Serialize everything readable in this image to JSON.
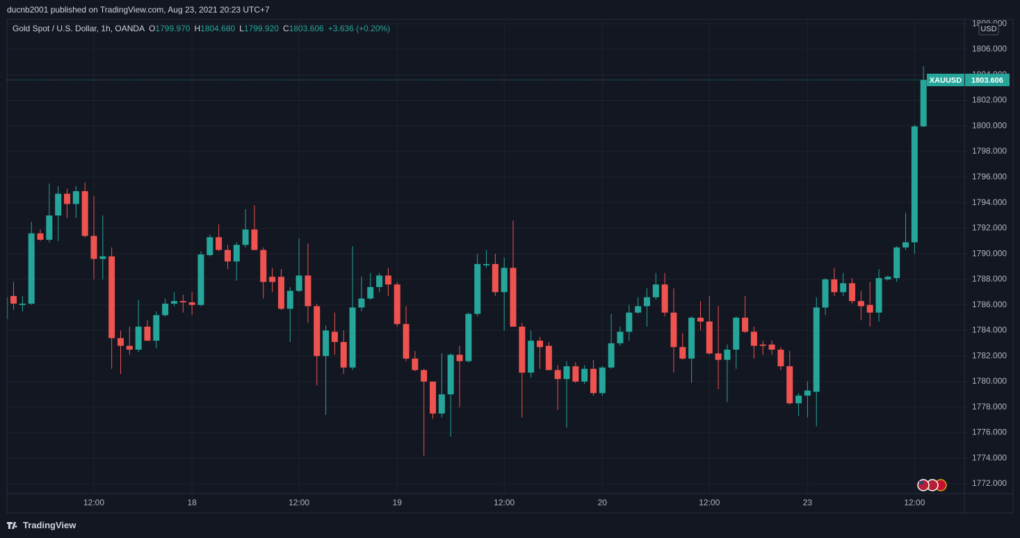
{
  "header": {
    "author": "ducnb2001 published on TradingView.com, Aug 23, 2021 20:23 UTC+7"
  },
  "legend": {
    "symbol": "Gold Spot / U.S. Dollar, 1h, OANDA",
    "ohlc": [
      {
        "key": "O",
        "value": "1799.970"
      },
      {
        "key": "H",
        "value": "1804.680"
      },
      {
        "key": "L",
        "value": "1799.920"
      },
      {
        "key": "C",
        "value": "1803.606"
      }
    ],
    "change": "+3.636 (+0.20%)"
  },
  "currency": "USD",
  "footer": {
    "brand": "TradingView"
  },
  "chart_data": {
    "type": "candlestick",
    "categories": [
      null,
      null,
      null,
      null,
      null,
      null,
      null,
      null,
      null,
      null,
      "12:00",
      null,
      null,
      null,
      null,
      null,
      null,
      null,
      null,
      null,
      null,
      "18",
      null,
      null,
      null,
      null,
      null,
      null,
      null,
      null,
      null,
      null,
      null,
      "12:00",
      null,
      null,
      null,
      null,
      null,
      null,
      null,
      null,
      null,
      null,
      "19",
      null,
      null,
      null,
      null,
      null,
      null,
      null,
      null,
      null,
      null,
      null,
      "12:00",
      null,
      null,
      null,
      null,
      null,
      null,
      null,
      null,
      null,
      null,
      "20",
      null,
      null,
      null,
      null,
      null,
      null,
      null,
      null,
      null,
      null,
      null,
      "12:00",
      null,
      null,
      null,
      null,
      null,
      null,
      null,
      null,
      null,
      null,
      "23",
      null,
      null,
      null,
      null,
      null,
      null,
      null,
      null,
      null,
      null,
      null,
      "12:00",
      null
    ],
    "series": [
      {
        "name": "XAUUSD",
        "last_value_label": "1803.606",
        "open": [
          1784.9,
          1786.7,
          1786.0,
          1786.1,
          1791.6,
          1791.1,
          1793.0,
          1794.7,
          1793.9,
          1794.9,
          1791.4,
          1789.6,
          1789.8,
          1783.4,
          1782.8,
          1782.5,
          1784.3,
          1783.2,
          1785.2,
          1786.1,
          1786.3,
          1786.2,
          1786.0,
          1789.9,
          1791.3,
          1790.3,
          1789.4,
          1790.7,
          1791.9,
          1790.3,
          1788.2,
          1788.2,
          1785.7,
          1787.1,
          1788.3,
          1785.9,
          1782.0,
          1783.9,
          1783.1,
          1781.1,
          1785.8,
          1786.5,
          1787.4,
          1788.3,
          1787.6,
          1784.5,
          1781.8,
          1780.9,
          1780.0,
          1777.5,
          1779.0,
          1782.1,
          1781.6,
          1785.3,
          1789.1,
          1789.2,
          1787.0,
          1788.9,
          1784.3,
          1780.7,
          1783.2,
          1782.8,
          1780.9,
          1780.2,
          1781.2,
          1780.0,
          1781.0,
          1779.1,
          1781.1,
          1783.0,
          1783.9,
          1785.4,
          1785.9,
          1786.6,
          1787.6,
          1785.4,
          1782.7,
          1781.8,
          1785.0,
          1784.7,
          1782.2,
          1781.7,
          1782.5,
          1785.0,
          1783.9,
          1782.9,
          1782.9,
          1782.5,
          1781.2,
          1778.3,
          1778.9,
          1779.2,
          1785.8,
          1788.0,
          1787.0,
          1787.7,
          1786.3,
          1786.0,
          1785.4,
          1788.0,
          1788.1,
          1790.5,
          1790.9,
          1799.97
        ],
        "high": [
          1786.7,
          1787.8,
          1786.7,
          1792.5,
          1791.9,
          1795.5,
          1795.3,
          1795.1,
          1795.3,
          1795.6,
          1794.5,
          1793.0,
          1790.5,
          1784.0,
          1784.3,
          1786.4,
          1784.8,
          1785.5,
          1786.5,
          1787.0,
          1786.8,
          1787.0,
          1790.2,
          1791.5,
          1792.3,
          1790.7,
          1790.9,
          1793.5,
          1793.8,
          1790.5,
          1788.9,
          1788.8,
          1787.4,
          1791.2,
          1790.8,
          1786.1,
          1784.4,
          1785.4,
          1784.0,
          1790.6,
          1788.2,
          1788.5,
          1788.5,
          1788.9,
          1787.8,
          1785.9,
          1782.4,
          1781.0,
          1780.0,
          1782.2,
          1782.2,
          1782.8,
          1785.4,
          1790.0,
          1790.3,
          1790.0,
          1789.7,
          1792.6,
          1784.6,
          1784.0,
          1783.5,
          1783.1,
          1781.3,
          1781.6,
          1781.5,
          1781.3,
          1781.7,
          1781.2,
          1785.3,
          1784.3,
          1786.0,
          1786.6,
          1787.3,
          1788.5,
          1788.5,
          1787.3,
          1783.8,
          1785.1,
          1786.3,
          1786.7,
          1785.9,
          1782.9,
          1785.1,
          1786.7,
          1784.3,
          1783.2,
          1783.2,
          1782.7,
          1782.4,
          1779.1,
          1780.0,
          1786.6,
          1788.1,
          1788.9,
          1788.5,
          1788.1,
          1787.1,
          1787.8,
          1788.8,
          1788.3,
          1790.6,
          1793.2,
          1800.1,
          1804.68
        ],
        "low": [
          1784.8,
          1785.6,
          1785.5,
          1786.0,
          1791.0,
          1790.9,
          1791.0,
          1792.8,
          1792.8,
          1791.3,
          1788.0,
          1788.0,
          1781.0,
          1780.6,
          1782.1,
          1782.3,
          1783.2,
          1782.6,
          1785.1,
          1785.9,
          1785.4,
          1785.2,
          1785.9,
          1789.8,
          1790.2,
          1788.8,
          1787.9,
          1790.5,
          1790.3,
          1786.5,
          1787.0,
          1785.6,
          1783.1,
          1787.0,
          1784.6,
          1779.7,
          1777.4,
          1782.1,
          1780.6,
          1780.9,
          1785.5,
          1786.4,
          1787.0,
          1786.7,
          1784.3,
          1781.6,
          1780.8,
          1774.2,
          1777.1,
          1777.2,
          1775.7,
          1778.0,
          1781.5,
          1785.1,
          1788.9,
          1786.7,
          1784.0,
          1784.3,
          1777.2,
          1780.3,
          1781.0,
          1780.9,
          1777.8,
          1776.4,
          1779.9,
          1779.8,
          1778.9,
          1778.9,
          1781.0,
          1782.8,
          1783.2,
          1785.3,
          1784.3,
          1786.4,
          1785.1,
          1780.7,
          1781.7,
          1779.9,
          1784.0,
          1782.1,
          1779.4,
          1778.4,
          1781.0,
          1783.8,
          1781.8,
          1782.1,
          1782.1,
          1780.9,
          1778.2,
          1777.3,
          1777.2,
          1776.5,
          1785.2,
          1786.7,
          1786.7,
          1786.1,
          1784.8,
          1784.3,
          1784.7,
          1787.9,
          1787.8,
          1790.3,
          1790.0,
          1799.92
        ],
        "close": [
          1786.6,
          1786.1,
          1786.1,
          1791.6,
          1791.1,
          1793.0,
          1794.7,
          1793.9,
          1794.9,
          1791.4,
          1789.6,
          1789.8,
          1783.4,
          1782.8,
          1782.5,
          1784.3,
          1783.2,
          1785.2,
          1786.1,
          1786.3,
          1786.2,
          1786.0,
          1789.95,
          1791.3,
          1790.3,
          1789.4,
          1790.7,
          1791.9,
          1790.3,
          1787.8,
          1787.8,
          1785.7,
          1787.1,
          1788.3,
          1785.9,
          1782.0,
          1784.0,
          1783.1,
          1781.1,
          1785.8,
          1786.5,
          1787.4,
          1788.3,
          1787.6,
          1784.5,
          1781.8,
          1780.9,
          1780.0,
          1777.5,
          1779.0,
          1782.1,
          1781.6,
          1785.3,
          1789.2,
          1789.2,
          1787.0,
          1788.9,
          1784.3,
          1780.7,
          1783.2,
          1782.7,
          1780.9,
          1780.2,
          1781.2,
          1780.0,
          1781.0,
          1779.1,
          1781.1,
          1783.0,
          1783.9,
          1785.4,
          1785.9,
          1786.6,
          1787.6,
          1785.4,
          1782.7,
          1781.8,
          1785.0,
          1784.7,
          1782.2,
          1781.7,
          1782.5,
          1785.0,
          1783.9,
          1782.8,
          1782.8,
          1782.5,
          1781.2,
          1778.3,
          1778.9,
          1779.3,
          1785.8,
          1788.0,
          1787.0,
          1787.7,
          1786.3,
          1785.9,
          1785.4,
          1788.1,
          1788.2,
          1790.5,
          1790.9,
          1799.97,
          1803.606
        ]
      }
    ],
    "up_color": "#26a69a",
    "down_color": "#ef5350",
    "ylim": [
      1771.24,
      1808.34
    ],
    "yticks": [
      {
        "value": 1772,
        "label": "1772.000"
      },
      {
        "value": 1774,
        "label": "1774.000"
      },
      {
        "value": 1776,
        "label": "1776.000"
      },
      {
        "value": 1778,
        "label": "1778.000"
      },
      {
        "value": 1780,
        "label": "1780.000"
      },
      {
        "value": 1782,
        "label": "1782.000"
      },
      {
        "value": 1784,
        "label": "1784.000"
      },
      {
        "value": 1786,
        "label": "1786.000"
      },
      {
        "value": 1788,
        "label": "1788.000"
      },
      {
        "value": 1790,
        "label": "1790.000"
      },
      {
        "value": 1792,
        "label": "1792.000"
      },
      {
        "value": 1794,
        "label": "1794.000"
      },
      {
        "value": 1796,
        "label": "1796.000"
      },
      {
        "value": 1798,
        "label": "1798.000"
      },
      {
        "value": 1800,
        "label": "1800.000"
      },
      {
        "value": 1802,
        "label": "1802.000"
      },
      {
        "value": 1804,
        "label": "1804.000"
      },
      {
        "value": 1806,
        "label": "1806.000"
      },
      {
        "value": 1808,
        "label": "1808.000"
      }
    ],
    "grid": true
  }
}
